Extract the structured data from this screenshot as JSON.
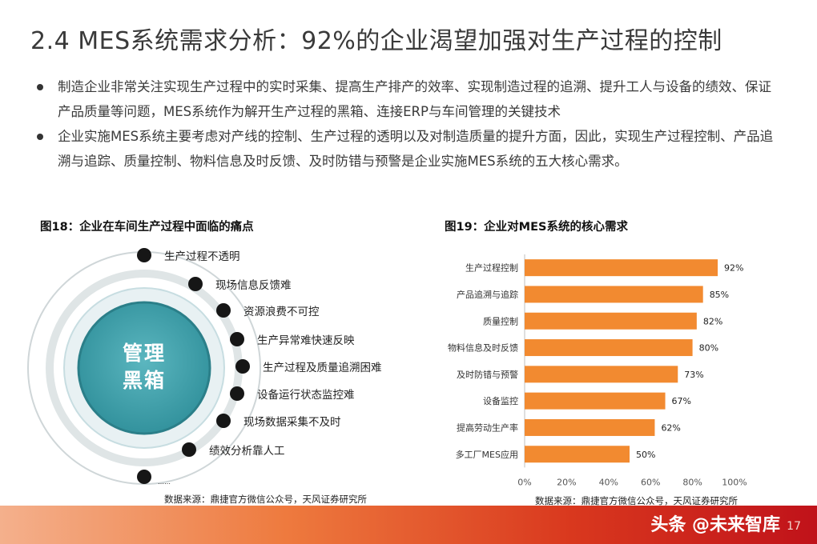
{
  "title": "2.4 MES系统需求分析：92%的企业渴望加强对生产过程的控制",
  "bullets": [
    "制造企业非常关注实现生产过程中的实时采集、提高生产排产的效率、实现制造过程的追溯、提升工人与设备的绩效、保证产品质量等问题，MES系统作为解开生产过程的黑箱、连接ERP与车间管理的关键技术",
    "企业实施MES系统主要考虑对产线的控制、生产过程的透明以及对制造质量的提升方面，因此，实现生产过程控制、产品追溯与追踪、质量控制、物料信息及时反馈、及时防错与预警是企业实施MES系统的五大核心需求。"
  ],
  "fig18": {
    "caption": "图18：企业在车间生产过程中面临的痛点",
    "center_label": "管理\n黑箱",
    "pain_points": [
      "生产过程不透明",
      "现场信息反馈难",
      "资源浪费不可控",
      "生产异常难快速反映",
      "生产过程及质量追溯困难",
      "设备运行状态监控难",
      "现场数据采集不及时",
      "绩效分析靠人工",
      "……"
    ],
    "source": "数据来源：鼎捷官方微信公众号，天风证券研究所",
    "colors": {
      "ring": "#4aa6b0",
      "ring_dark": "#2e8e99",
      "dot": "#161616"
    }
  },
  "fig19": {
    "caption": "图19：企业对MES系统的核心需求",
    "source": "数据来源：鼎捷官方微信公众号，天风证券研究所"
  },
  "chart_data": {
    "type": "bar",
    "orientation": "horizontal",
    "categories": [
      "生产过程控制",
      "产品追溯与追踪",
      "质量控制",
      "物料信息及时反馈",
      "及时防错与预警",
      "设备监控",
      "提高劳动生产率",
      "多工厂MES应用"
    ],
    "values": [
      92,
      85,
      82,
      80,
      73,
      67,
      62,
      50
    ],
    "value_labels": [
      "92%",
      "85%",
      "82%",
      "80%",
      "73%",
      "67%",
      "62%",
      "50%"
    ],
    "xticks": [
      "0%",
      "20%",
      "40%",
      "60%",
      "80%",
      "100%"
    ],
    "xlim": [
      0,
      100
    ],
    "grid": false,
    "bar_color": "#f28a30"
  },
  "footer": {
    "watermark": "头条 @未来智库",
    "page_number": "17"
  }
}
